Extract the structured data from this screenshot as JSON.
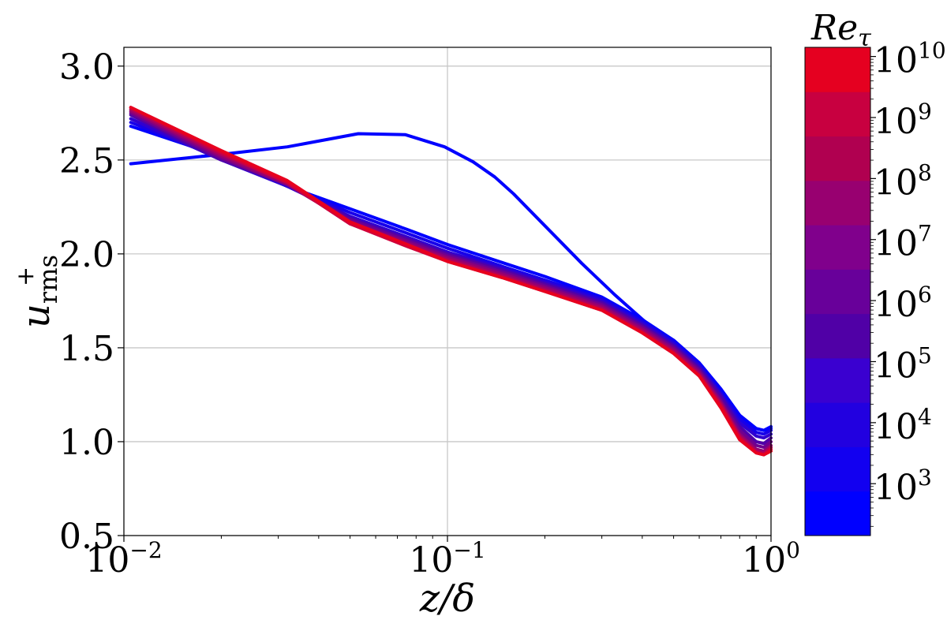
{
  "chart_data": {
    "type": "line",
    "xlabel": "z/δ",
    "ylabel": "u_rms^+",
    "x_scale": "log",
    "xlim": [
      0.01,
      1
    ],
    "ylim": [
      0.5,
      3.1
    ],
    "grid": true,
    "x_ticks": [
      {
        "base": "10",
        "exp": "−2",
        "value": 0.01
      },
      {
        "base": "10",
        "exp": "−1",
        "value": 0.1
      },
      {
        "base": "10",
        "exp": "0",
        "value": 1
      }
    ],
    "y_ticks": [
      "0.5",
      "1.0",
      "1.5",
      "2.0",
      "2.5",
      "3.0"
    ],
    "colorbar": {
      "title": "Re_τ",
      "scale": "log",
      "range_exp": [
        2.15,
        10.15
      ],
      "colors": [
        "#0000ff",
        "#1200f0",
        "#2200e0",
        "#3a00d0",
        "#5000a6",
        "#68009a",
        "#80008c",
        "#980070",
        "#b00050",
        "#c80040",
        "#e50020"
      ],
      "ticks": [
        {
          "base": "10",
          "exp": "3",
          "value_exp": 3
        },
        {
          "base": "10",
          "exp": "4",
          "value_exp": 4
        },
        {
          "base": "10",
          "exp": "5",
          "value_exp": 5
        },
        {
          "base": "10",
          "exp": "6",
          "value_exp": 6
        },
        {
          "base": "10",
          "exp": "7",
          "value_exp": 7
        },
        {
          "base": "10",
          "exp": "8",
          "value_exp": 8
        },
        {
          "base": "10",
          "exp": "9",
          "value_exp": 9
        },
        {
          "base": "10",
          "exp": "10",
          "value_exp": 10
        }
      ]
    },
    "series": [
      {
        "color": "#0000ff",
        "x": [
          0.0105,
          0.02,
          0.032,
          0.053,
          0.074,
          0.098,
          0.12,
          0.14,
          0.16,
          0.2,
          0.26,
          0.33,
          0.42,
          0.5,
          0.6,
          0.7,
          0.8,
          0.9,
          0.95,
          1.0
        ],
        "y": [
          2.48,
          2.53,
          2.57,
          2.64,
          2.635,
          2.57,
          2.49,
          2.41,
          2.32,
          2.15,
          1.95,
          1.78,
          1.62,
          1.54,
          1.42,
          1.28,
          1.14,
          1.07,
          1.06,
          1.07
        ]
      },
      {
        "color": "#0000ff",
        "x": [
          0.0105,
          0.02,
          0.032,
          0.05,
          0.075,
          0.1,
          0.15,
          0.2,
          0.3,
          0.4,
          0.5,
          0.6,
          0.7,
          0.8,
          0.9,
          0.95,
          1.0
        ],
        "y": [
          2.68,
          2.52,
          2.36,
          2.24,
          2.13,
          2.05,
          1.95,
          1.88,
          1.77,
          1.65,
          1.54,
          1.42,
          1.28,
          1.14,
          1.07,
          1.06,
          1.08
        ]
      },
      {
        "color": "#1800e8",
        "x": [
          0.0105,
          0.02,
          0.032,
          0.05,
          0.075,
          0.1,
          0.15,
          0.2,
          0.3,
          0.4,
          0.5,
          0.6,
          0.7,
          0.8,
          0.9,
          0.95,
          1.0
        ],
        "y": [
          2.7,
          2.51,
          2.36,
          2.22,
          2.11,
          2.03,
          1.93,
          1.86,
          1.76,
          1.64,
          1.53,
          1.41,
          1.26,
          1.12,
          1.05,
          1.04,
          1.06
        ]
      },
      {
        "color": "#3000d0",
        "x": [
          0.0105,
          0.02,
          0.032,
          0.05,
          0.075,
          0.1,
          0.15,
          0.2,
          0.3,
          0.4,
          0.5,
          0.6,
          0.7,
          0.8,
          0.9,
          0.95,
          1.0
        ],
        "y": [
          2.72,
          2.5,
          2.36,
          2.2,
          2.09,
          2.01,
          1.92,
          1.85,
          1.75,
          1.63,
          1.52,
          1.4,
          1.25,
          1.1,
          1.03,
          1.02,
          1.04
        ]
      },
      {
        "color": "#5000a8",
        "x": [
          0.0105,
          0.02,
          0.032,
          0.05,
          0.075,
          0.1,
          0.15,
          0.2,
          0.3,
          0.4,
          0.5,
          0.6,
          0.7,
          0.8,
          0.9,
          0.95,
          1.0
        ],
        "y": [
          2.74,
          2.5,
          2.37,
          2.19,
          2.08,
          2.0,
          1.91,
          1.84,
          1.74,
          1.62,
          1.51,
          1.39,
          1.24,
          1.08,
          1.0,
          0.99,
          1.02
        ]
      },
      {
        "color": "#70008f",
        "x": [
          0.0105,
          0.02,
          0.032,
          0.05,
          0.075,
          0.1,
          0.15,
          0.2,
          0.3,
          0.4,
          0.5,
          0.6,
          0.7,
          0.8,
          0.9,
          0.95,
          1.0
        ],
        "y": [
          2.75,
          2.51,
          2.37,
          2.18,
          2.07,
          1.99,
          1.9,
          1.83,
          1.73,
          1.61,
          1.5,
          1.38,
          1.22,
          1.06,
          0.98,
          0.97,
          1.0
        ]
      },
      {
        "color": "#900075",
        "x": [
          0.0105,
          0.02,
          0.032,
          0.05,
          0.075,
          0.1,
          0.15,
          0.2,
          0.3,
          0.4,
          0.5,
          0.6,
          0.7,
          0.8,
          0.9,
          0.95,
          1.0
        ],
        "y": [
          2.76,
          2.52,
          2.37,
          2.17,
          2.06,
          1.98,
          1.89,
          1.82,
          1.72,
          1.6,
          1.49,
          1.37,
          1.21,
          1.04,
          0.96,
          0.95,
          0.98
        ]
      },
      {
        "color": "#b0005a",
        "x": [
          0.0105,
          0.02,
          0.032,
          0.05,
          0.075,
          0.1,
          0.15,
          0.2,
          0.3,
          0.4,
          0.5,
          0.6,
          0.7,
          0.8,
          0.9,
          0.95,
          1.0
        ],
        "y": [
          2.77,
          2.53,
          2.38,
          2.16,
          2.05,
          1.97,
          1.88,
          1.81,
          1.71,
          1.59,
          1.48,
          1.36,
          1.2,
          1.03,
          0.95,
          0.94,
          0.97
        ]
      },
      {
        "color": "#d0003a",
        "x": [
          0.0105,
          0.02,
          0.032,
          0.05,
          0.075,
          0.1,
          0.15,
          0.2,
          0.3,
          0.4,
          0.5,
          0.6,
          0.7,
          0.8,
          0.9,
          0.95,
          1.0
        ],
        "y": [
          2.78,
          2.54,
          2.38,
          2.16,
          2.04,
          1.96,
          1.87,
          1.8,
          1.7,
          1.58,
          1.47,
          1.35,
          1.19,
          1.02,
          0.94,
          0.93,
          0.96
        ]
      },
      {
        "color": "#e8001e",
        "x": [
          0.0105,
          0.02,
          0.032,
          0.05,
          0.075,
          0.1,
          0.15,
          0.2,
          0.3,
          0.4,
          0.5,
          0.6,
          0.7,
          0.8,
          0.9,
          0.95,
          1.0
        ],
        "y": [
          2.78,
          2.55,
          2.39,
          2.17,
          2.05,
          1.96,
          1.87,
          1.8,
          1.7,
          1.58,
          1.47,
          1.35,
          1.18,
          1.01,
          0.94,
          0.93,
          0.95
        ]
      }
    ]
  }
}
